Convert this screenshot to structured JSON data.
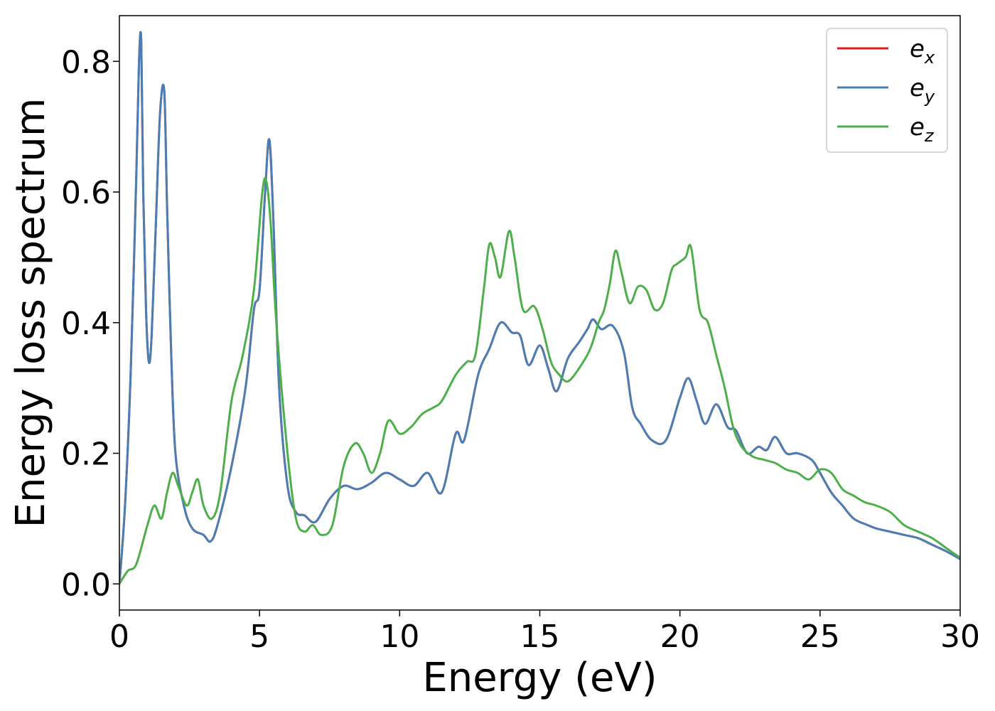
{
  "chart_data": {
    "type": "line",
    "title": "",
    "xlabel": "Energy (eV)",
    "ylabel": "Energy loss spectrum",
    "xlim": [
      0,
      30
    ],
    "ylim": [
      -0.04,
      0.87
    ],
    "xticks": [
      0,
      5,
      10,
      15,
      20,
      25,
      30
    ],
    "xtick_labels": [
      "0",
      "5",
      "10",
      "15",
      "20",
      "25",
      "30"
    ],
    "yticks": [
      0.0,
      0.2,
      0.4,
      0.6,
      0.8
    ],
    "ytick_labels": [
      "0.0",
      "0.2",
      "0.4",
      "0.6",
      "0.8"
    ],
    "grid": false,
    "legend_position": "top-right",
    "series": [
      {
        "name": "e_x",
        "legend_base": "e",
        "legend_sub": "x",
        "color": "#e41a1c",
        "x": [
          0,
          0.2,
          0.4,
          0.6,
          0.7,
          0.78,
          0.85,
          0.95,
          1.05,
          1.15,
          1.3,
          1.45,
          1.6,
          1.7,
          1.85,
          2.0,
          2.3,
          2.6,
          3.0,
          3.25,
          3.5,
          4.0,
          4.5,
          4.8,
          5.0,
          5.2,
          5.35,
          5.5,
          5.7,
          6.0,
          6.3,
          6.6,
          7.0,
          7.5,
          8.0,
          8.5,
          9.0,
          9.5,
          10.0,
          10.5,
          11.0,
          11.5,
          12.0,
          12.3,
          12.8,
          13.2,
          13.6,
          14.0,
          14.3,
          14.6,
          15.0,
          15.3,
          15.6,
          16.0,
          16.4,
          16.7,
          16.9,
          17.2,
          17.6,
          18.0,
          18.3,
          18.6,
          19.0,
          19.5,
          20.0,
          20.3,
          20.6,
          20.9,
          21.3,
          21.7,
          22.0,
          22.4,
          22.8,
          23.1,
          23.4,
          23.8,
          24.2,
          24.7,
          25.0,
          25.4,
          25.8,
          26.2,
          26.7,
          27.0,
          27.5,
          28.0,
          28.5,
          29.0,
          29.5,
          30.0
        ],
        "values": [
          0.0,
          0.12,
          0.32,
          0.62,
          0.8,
          0.83,
          0.6,
          0.42,
          0.34,
          0.38,
          0.55,
          0.72,
          0.755,
          0.58,
          0.35,
          0.2,
          0.12,
          0.085,
          0.075,
          0.065,
          0.09,
          0.18,
          0.3,
          0.42,
          0.45,
          0.6,
          0.68,
          0.55,
          0.3,
          0.15,
          0.11,
          0.105,
          0.095,
          0.13,
          0.15,
          0.145,
          0.155,
          0.17,
          0.16,
          0.15,
          0.17,
          0.14,
          0.23,
          0.22,
          0.32,
          0.36,
          0.4,
          0.385,
          0.38,
          0.335,
          0.365,
          0.33,
          0.295,
          0.345,
          0.37,
          0.39,
          0.405,
          0.39,
          0.395,
          0.355,
          0.27,
          0.245,
          0.22,
          0.22,
          0.285,
          0.315,
          0.28,
          0.245,
          0.275,
          0.24,
          0.235,
          0.2,
          0.21,
          0.205,
          0.225,
          0.2,
          0.2,
          0.19,
          0.17,
          0.14,
          0.12,
          0.1,
          0.09,
          0.085,
          0.08,
          0.075,
          0.07,
          0.06,
          0.05,
          0.038
        ]
      },
      {
        "name": "e_y",
        "legend_base": "e",
        "legend_sub": "y",
        "color": "#4a7fb5",
        "x": [
          0,
          0.2,
          0.4,
          0.6,
          0.7,
          0.78,
          0.85,
          0.95,
          1.05,
          1.15,
          1.3,
          1.45,
          1.6,
          1.7,
          1.85,
          2.0,
          2.3,
          2.6,
          3.0,
          3.25,
          3.5,
          4.0,
          4.5,
          4.8,
          5.0,
          5.2,
          5.35,
          5.5,
          5.7,
          6.0,
          6.3,
          6.6,
          7.0,
          7.5,
          8.0,
          8.5,
          9.0,
          9.5,
          10.0,
          10.5,
          11.0,
          11.5,
          12.0,
          12.3,
          12.8,
          13.2,
          13.6,
          14.0,
          14.3,
          14.6,
          15.0,
          15.3,
          15.6,
          16.0,
          16.4,
          16.7,
          16.9,
          17.2,
          17.6,
          18.0,
          18.3,
          18.6,
          19.0,
          19.5,
          20.0,
          20.3,
          20.6,
          20.9,
          21.3,
          21.7,
          22.0,
          22.4,
          22.8,
          23.1,
          23.4,
          23.8,
          24.2,
          24.7,
          25.0,
          25.4,
          25.8,
          26.2,
          26.7,
          27.0,
          27.5,
          28.0,
          28.5,
          29.0,
          29.5,
          30.0
        ],
        "values": [
          0.0,
          0.12,
          0.32,
          0.62,
          0.8,
          0.83,
          0.6,
          0.42,
          0.34,
          0.38,
          0.55,
          0.72,
          0.755,
          0.58,
          0.35,
          0.2,
          0.12,
          0.085,
          0.075,
          0.065,
          0.09,
          0.18,
          0.3,
          0.42,
          0.45,
          0.6,
          0.68,
          0.55,
          0.3,
          0.15,
          0.11,
          0.105,
          0.095,
          0.13,
          0.15,
          0.145,
          0.155,
          0.17,
          0.16,
          0.15,
          0.17,
          0.14,
          0.23,
          0.22,
          0.32,
          0.36,
          0.4,
          0.385,
          0.38,
          0.335,
          0.365,
          0.33,
          0.295,
          0.345,
          0.37,
          0.39,
          0.405,
          0.39,
          0.395,
          0.355,
          0.27,
          0.245,
          0.22,
          0.22,
          0.285,
          0.315,
          0.28,
          0.245,
          0.275,
          0.24,
          0.235,
          0.2,
          0.21,
          0.205,
          0.225,
          0.2,
          0.2,
          0.19,
          0.17,
          0.14,
          0.12,
          0.1,
          0.09,
          0.085,
          0.08,
          0.075,
          0.07,
          0.06,
          0.05,
          0.038
        ]
      },
      {
        "name": "e_z",
        "legend_base": "e",
        "legend_sub": "z",
        "color": "#4daf4a",
        "x": [
          0,
          0.3,
          0.6,
          1.0,
          1.25,
          1.5,
          1.7,
          1.9,
          2.1,
          2.4,
          2.6,
          2.8,
          3.0,
          3.3,
          3.6,
          4.0,
          4.4,
          4.8,
          5.1,
          5.25,
          5.4,
          5.6,
          6.0,
          6.3,
          6.6,
          6.9,
          7.2,
          7.6,
          8.0,
          8.4,
          8.7,
          9.0,
          9.3,
          9.6,
          10.0,
          10.4,
          10.8,
          11.2,
          11.5,
          12.0,
          12.4,
          12.7,
          13.0,
          13.2,
          13.4,
          13.6,
          13.9,
          14.1,
          14.4,
          14.8,
          15.1,
          15.4,
          15.7,
          16.0,
          16.4,
          16.8,
          17.1,
          17.3,
          17.5,
          17.7,
          17.9,
          18.2,
          18.5,
          18.8,
          19.1,
          19.4,
          19.7,
          19.9,
          20.2,
          20.4,
          20.7,
          21.0,
          21.3,
          21.6,
          21.9,
          22.2,
          22.6,
          23.0,
          23.4,
          23.8,
          24.2,
          24.6,
          25.0,
          25.4,
          25.8,
          26.2,
          26.6,
          27.0,
          27.5,
          28.0,
          28.5,
          29.0,
          29.5,
          30.0
        ],
        "values": [
          0.0,
          0.02,
          0.03,
          0.09,
          0.12,
          0.1,
          0.14,
          0.17,
          0.15,
          0.12,
          0.14,
          0.16,
          0.12,
          0.1,
          0.14,
          0.28,
          0.35,
          0.45,
          0.6,
          0.615,
          0.55,
          0.4,
          0.2,
          0.1,
          0.08,
          0.09,
          0.075,
          0.09,
          0.18,
          0.215,
          0.2,
          0.17,
          0.2,
          0.25,
          0.23,
          0.24,
          0.26,
          0.27,
          0.28,
          0.32,
          0.34,
          0.35,
          0.45,
          0.52,
          0.5,
          0.47,
          0.54,
          0.5,
          0.42,
          0.425,
          0.39,
          0.34,
          0.32,
          0.31,
          0.33,
          0.36,
          0.4,
          0.42,
          0.46,
          0.51,
          0.48,
          0.43,
          0.455,
          0.45,
          0.42,
          0.43,
          0.48,
          0.49,
          0.5,
          0.515,
          0.42,
          0.4,
          0.35,
          0.3,
          0.24,
          0.21,
          0.195,
          0.19,
          0.185,
          0.175,
          0.17,
          0.16,
          0.175,
          0.17,
          0.145,
          0.135,
          0.125,
          0.12,
          0.11,
          0.09,
          0.08,
          0.07,
          0.055,
          0.04
        ]
      }
    ]
  }
}
